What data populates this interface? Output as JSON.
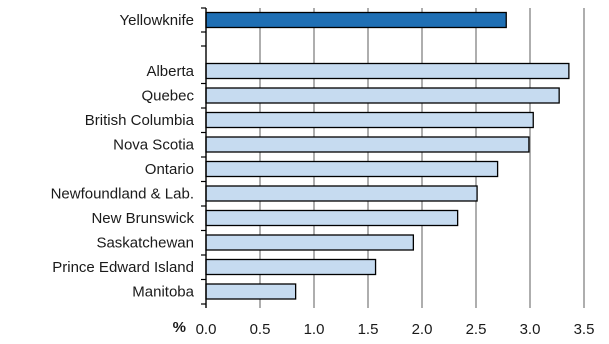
{
  "chart_data": {
    "type": "bar",
    "orientation": "horizontal",
    "title": "",
    "xlabel": "",
    "ylabel": "",
    "x_unit_label": "%",
    "xlim": [
      0,
      3.5
    ],
    "x_ticks": [
      "0.0",
      "0.5",
      "1.0",
      "1.5",
      "2.0",
      "2.5",
      "3.0",
      "3.5"
    ],
    "grid": "vertical",
    "highlight": {
      "category": "Yellowknife",
      "value": 2.78,
      "color": "#1f6fb4"
    },
    "categories": [
      "Alberta",
      "Quebec",
      "British Columbia",
      "Nova Scotia",
      "Ontario",
      "Newfoundland & Lab.",
      "New Brunswick",
      "Saskatchewan",
      "Prince Edward Island",
      "Manitoba"
    ],
    "values": [
      3.36,
      3.27,
      3.03,
      2.99,
      2.7,
      2.51,
      2.33,
      1.92,
      1.57,
      0.83
    ],
    "bar_color": "#c6dbf0",
    "edge_color": "#000000"
  }
}
